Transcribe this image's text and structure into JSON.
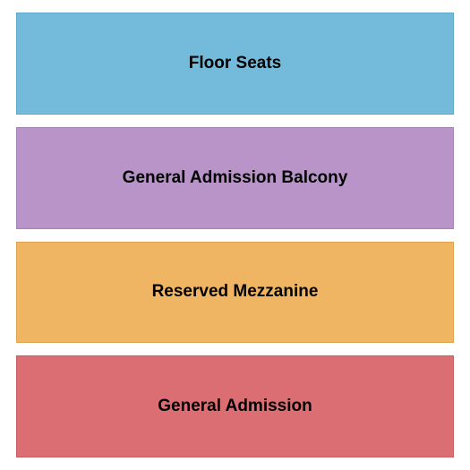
{
  "seating_chart": {
    "type": "infographic",
    "background_color": "#ffffff",
    "container_width": 525,
    "container_height": 525,
    "padding": 14,
    "gap": 14,
    "label_fontsize": 19,
    "label_fontweight": "bold",
    "label_color": "#000000",
    "sections": [
      {
        "label": "Floor Seats",
        "fill_color": "#74bbdb",
        "border_color": "#5fa9c9"
      },
      {
        "label": "General Admission Balcony",
        "fill_color": "#b894c9",
        "border_color": "#a683b8"
      },
      {
        "label": "Reserved Mezzanine",
        "fill_color": "#f0b562",
        "border_color": "#dfa452"
      },
      {
        "label": "General Admission",
        "fill_color": "#db6e72",
        "border_color": "#c95e62"
      }
    ]
  }
}
